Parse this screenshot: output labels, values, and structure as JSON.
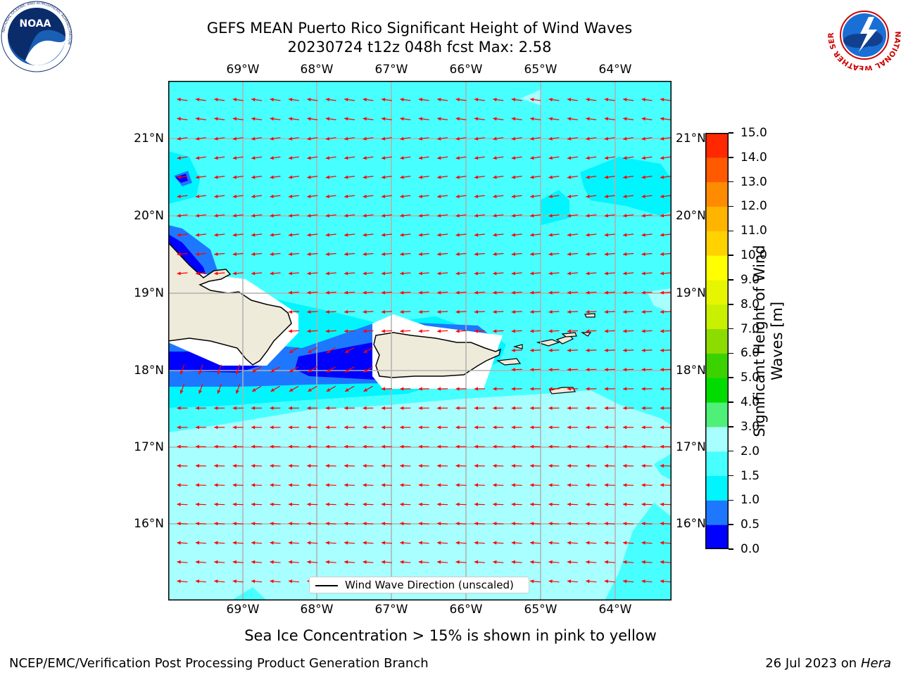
{
  "title": {
    "line1": "GEFS MEAN Puerto Rico Significant Height of Wind Waves",
    "line2": "20230724 t12z 048h fcst   Max: 2.58"
  },
  "map": {
    "lon_labels": [
      "69°W",
      "68°W",
      "67°W",
      "66°W",
      "65°W",
      "64°W"
    ],
    "lat_labels": [
      "21°N",
      "20°N",
      "19°N",
      "18°N",
      "17°N",
      "16°N"
    ],
    "extent": {
      "lon": [
        -70.0,
        -63.25
      ],
      "lat": [
        15.0,
        21.75
      ]
    },
    "legend_label": "Wind Wave Direction (unscaled)",
    "arrow_color": "#ff0000"
  },
  "colorbar": {
    "label": "Significant Height of Wind Waves [m]",
    "label_line1": "Significant Height of Wind",
    "label_line2": "Waves [m]",
    "ticks": [
      "0.0",
      "0.5",
      "1.0",
      "1.5",
      "2.0",
      "3.0",
      "4.0",
      "5.0",
      "6.0",
      "7.0",
      "8.0",
      "9.0",
      "10.0",
      "11.0",
      "12.0",
      "13.0",
      "14.0",
      "15.0"
    ],
    "colors": [
      "#0000ff",
      "#1e78ff",
      "#00f5ff",
      "#48ffff",
      "#a8ffff",
      "#4ef078",
      "#00dc00",
      "#3cd200",
      "#8cdc00",
      "#c8f000",
      "#e6f500",
      "#ffff00",
      "#ffd200",
      "#ffb400",
      "#ff8c00",
      "#ff5a00",
      "#ff2800"
    ]
  },
  "annotation": "Sea Ice Concentration > 15% is shown in pink to yellow",
  "footer": {
    "left": "NCEP/EMC/Verification Post Processing Product Generation Branch",
    "date": "26 Jul 2023 on ",
    "machine": "Hera"
  },
  "logos": {
    "noaa_text": "NOAA",
    "noaa_ring": "NATIONAL OCEANIC AND ATMOSPHERIC ADMINISTRATION",
    "noaa_ring2": "U.S. DEPARTMENT OF COMMERCE",
    "nws_ring": "NATIONAL WEATHER SERVICE"
  }
}
